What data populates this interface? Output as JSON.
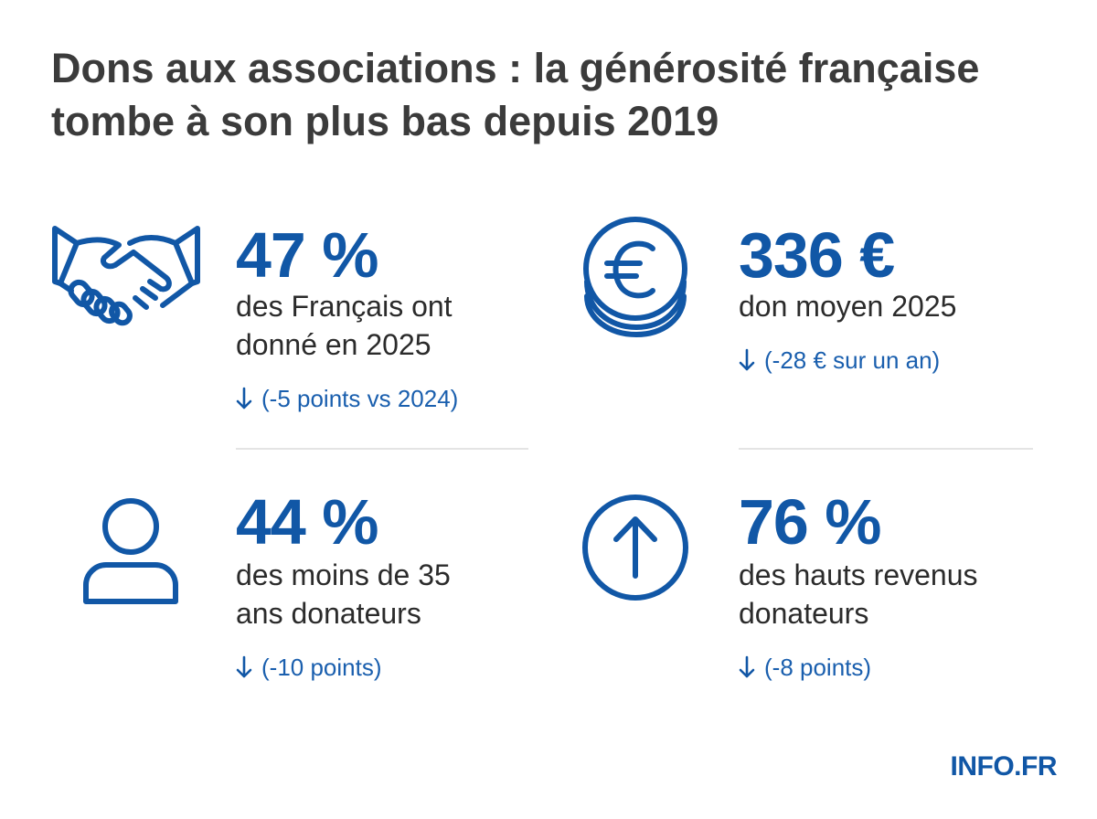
{
  "title": {
    "line1": "Dons aux associations : la générosité française",
    "line2": "tombe à son plus bas depuis 2019"
  },
  "stats": [
    {
      "icon": "handshake-icon",
      "value": "47 %",
      "desc_line1": "des Français ont",
      "desc_line2": "donné en 2025",
      "change": "(-5 points vs 2024)"
    },
    {
      "icon": "euro-coins-icon",
      "value": "336 €",
      "desc_line1": "don moyen 2025",
      "change": "(-28 € sur un an)"
    },
    {
      "icon": "person-icon",
      "value": "44 %",
      "desc_line1": "des moins de 35",
      "desc_line2": "ans donateurs",
      "change": "(-10 points)"
    },
    {
      "icon": "arrow-up-circle-icon",
      "value": "76 %",
      "desc_line1": "des hauts revenus",
      "desc_line2": "donateurs",
      "change": "(-8 points)"
    }
  ],
  "brand": "INFO.FR",
  "colors": {
    "accent": "#1157a6",
    "title": "#3b3b3b",
    "divider": "#e4e4e4"
  }
}
